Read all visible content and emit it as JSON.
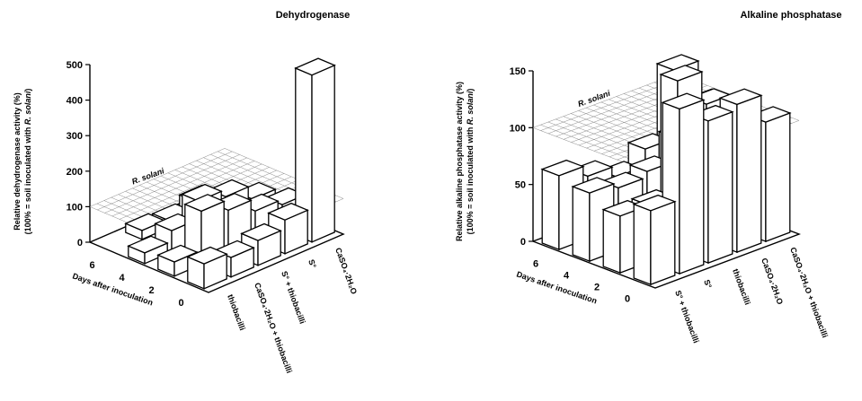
{
  "chart_data": [
    {
      "type": "bar3d",
      "title": "Dehydrogenase",
      "ylabel_line1": "Relative dehydrogenase activity (%)",
      "ylabel_line2_prefix": "(100% = soil inoculated with ",
      "ylabel_line2_italic": "R. solani",
      "ylabel_line2_suffix": ")",
      "xlabel": "Days after inoculation",
      "days": [
        "6",
        "4",
        "2",
        "0"
      ],
      "treatments": [
        "thiobacilli",
        "CaSO₄·2H₂O + thiobacilli",
        "S° + thiobacilli",
        "S°",
        "CaSO₄·2H₂O"
      ],
      "yticks": [
        "0",
        "100",
        "200",
        "300",
        "400",
        "500"
      ],
      "ylim": [
        0,
        500
      ],
      "reference_label": "R. solani",
      "reference_value": 100,
      "values": [
        [
          0,
          25,
          20,
          40,
          15
        ],
        [
          30,
          60,
          110,
          90,
          50
        ],
        [
          40,
          150,
          120,
          85,
          70
        ],
        [
          70,
          55,
          70,
          95,
          470
        ]
      ]
    },
    {
      "type": "bar3d",
      "title": "Alkaline phosphatase",
      "ylabel_line1": "Relative alkaline phosphatase activity (%)",
      "ylabel_line2_prefix": "(100% = soil inoculated with ",
      "ylabel_line2_italic": "R. solani",
      "ylabel_line2_suffix": ")",
      "xlabel": "Days after inoculation",
      "days": [
        "6",
        "4",
        "2",
        "0"
      ],
      "treatments": [
        "S° + thiobacilli",
        "S°",
        "thiobacilli",
        "CaSO₄·2H₂O",
        "CaSO₄·2H₂O + thiobacilli"
      ],
      "yticks": [
        "0",
        "50",
        "100",
        "150"
      ],
      "ylim": [
        0,
        150
      ],
      "reference_label": "R. solani",
      "reference_value": 100,
      "values": [
        [
          65,
          55,
          45,
          60,
          120
        ],
        [
          60,
          55,
          60,
          80,
          100
        ],
        [
          50,
          50,
          150,
          120,
          108
        ],
        [
          65,
          145,
          125,
          130,
          105
        ]
      ]
    }
  ]
}
